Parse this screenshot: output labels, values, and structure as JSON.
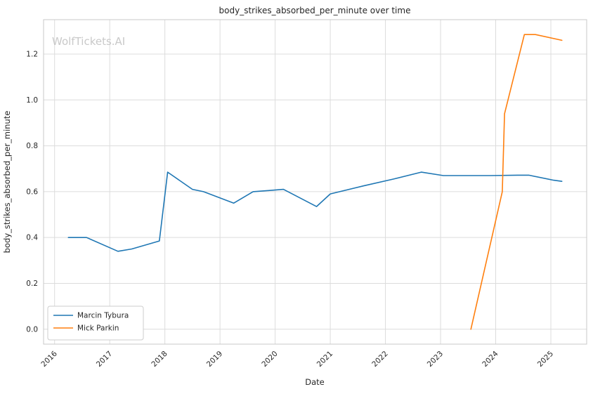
{
  "chart_data": {
    "type": "line",
    "title": "body_strikes_absorbed_per_minute over time",
    "xlabel": "Date",
    "ylabel": "body_strikes_absorbed_per_minute",
    "watermark": "WolfTickets.AI",
    "grid": true,
    "legend_position": "lower left",
    "xlim": [
      2015.8,
      2025.65
    ],
    "ylim": [
      -0.065,
      1.35
    ],
    "xticks": [
      2016,
      2017,
      2018,
      2019,
      2020,
      2021,
      2022,
      2023,
      2024,
      2025
    ],
    "yticks": [
      0.0,
      0.2,
      0.4,
      0.6,
      0.8,
      1.0,
      1.2
    ],
    "series": [
      {
        "name": "Marcin Tybura",
        "color": "#1f77b4",
        "x": [
          2016.25,
          2016.58,
          2017.15,
          2017.4,
          2017.9,
          2018.05,
          2018.5,
          2018.7,
          2019.25,
          2019.6,
          2019.9,
          2020.15,
          2020.75,
          2021.0,
          2021.6,
          2022.15,
          2022.65,
          2023.05,
          2023.9,
          2024.4,
          2024.6,
          2025.05,
          2025.2
        ],
        "y": [
          0.4,
          0.4,
          0.34,
          0.35,
          0.385,
          0.685,
          0.61,
          0.6,
          0.55,
          0.6,
          0.605,
          0.61,
          0.535,
          0.59,
          0.625,
          0.655,
          0.685,
          0.67,
          0.67,
          0.672,
          0.672,
          0.65,
          0.645
        ]
      },
      {
        "name": "Mick Parkin",
        "color": "#ff7f0e",
        "x": [
          2023.55,
          2024.12,
          2024.16,
          2024.52,
          2024.72,
          2025.2
        ],
        "y": [
          0.0,
          0.6,
          0.94,
          1.285,
          1.285,
          1.26
        ]
      }
    ]
  }
}
